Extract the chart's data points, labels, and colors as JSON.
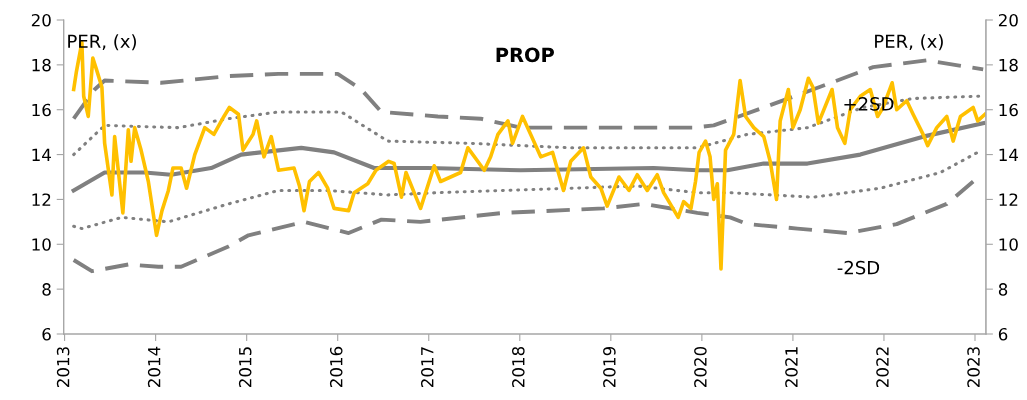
{
  "chart_data": {
    "type": "line",
    "title": "PROP",
    "ylabel": "PER, (x)",
    "y2label": "PER, (x)",
    "xlim": [
      2012.99,
      2023.12
    ],
    "xticks": [
      2013,
      2014,
      2015,
      2016,
      2017,
      2018,
      2019,
      2020,
      2021,
      2022,
      2023
    ],
    "ylim": [
      6,
      20
    ],
    "yticks": [
      6,
      8,
      10,
      12,
      14,
      16,
      18,
      20
    ],
    "y2lim": [
      6,
      20
    ],
    "y2ticks": [
      6,
      8,
      10,
      12,
      14,
      16,
      18,
      20
    ],
    "grid": false,
    "annotations": [
      {
        "text": "+2SD",
        "x": 2021.83,
        "y": 17.8
      },
      {
        "text": "-2SD",
        "x": 2021.72,
        "y": 10.5
      }
    ],
    "series": [
      {
        "color": "#808080",
        "line_style": "dashed",
        "x": [
          2013.1,
          2013.3,
          2013.7,
          2014.03,
          2014.28,
          2014.8,
          2015.02,
          2015.63,
          2016.12,
          2016.48,
          2016.91,
          2017.82,
          2018.92,
          2019.36,
          2019.95,
          2020.31,
          2020.5,
          2021.05,
          2021.6,
          2022.14,
          2022.69,
          2022.98
        ],
        "values": [
          9.3,
          8.8,
          9.1,
          9.0,
          9.0,
          9.9,
          10.4,
          11.0,
          10.5,
          11.1,
          11.0,
          11.4,
          11.6,
          11.8,
          11.4,
          11.2,
          10.9,
          10.7,
          10.5,
          10.9,
          11.8,
          12.8
        ]
      },
      {
        "color": "#808080",
        "line_style": "dashed",
        "x": [
          2013.1,
          2013.33,
          2013.44,
          2014.06,
          2014.8,
          2015.35,
          2016.0,
          2016.26,
          2016.48,
          2017.1,
          2017.57,
          2018.01,
          2018.92,
          2019.91,
          2020.13,
          2020.68,
          2021.22,
          2021.88,
          2022.47,
          2023.09
        ],
        "values": [
          15.6,
          16.9,
          17.3,
          17.2,
          17.5,
          17.6,
          17.6,
          16.9,
          15.9,
          15.7,
          15.6,
          15.2,
          15.2,
          15.2,
          15.3,
          16.1,
          16.9,
          17.9,
          18.2,
          17.8
        ]
      },
      {
        "color": "#808080",
        "line_style": "dotted",
        "x": [
          2013.1,
          2013.19,
          2013.63,
          2014.14,
          2014.8,
          2015.35,
          2015.89,
          2016.55,
          2017.1,
          2018.56,
          2019.29,
          2019.95,
          2020.31,
          2021.22,
          2021.96,
          2022.62,
          2023.03
        ],
        "values": [
          10.8,
          10.7,
          11.2,
          11.0,
          11.8,
          12.4,
          12.4,
          12.2,
          12.3,
          12.5,
          12.6,
          12.3,
          12.3,
          12.1,
          12.5,
          13.2,
          14.1
        ]
      },
      {
        "color": "#808080",
        "line_style": "dotted",
        "x": [
          2013.1,
          2013.44,
          2014.25,
          2014.8,
          2015.35,
          2016.04,
          2016.55,
          2017.46,
          2018.56,
          2019.95,
          2020.5,
          2021.16,
          2021.77,
          2022.32,
          2023.05
        ],
        "values": [
          14.0,
          15.3,
          15.2,
          15.6,
          15.9,
          15.9,
          14.6,
          14.5,
          14.3,
          14.3,
          14.9,
          15.2,
          16.1,
          16.5,
          16.6
        ]
      },
      {
        "color": "#808080",
        "line_style": "solid",
        "x": [
          2013.1,
          2013.44,
          2013.88,
          2014.17,
          2014.61,
          2014.94,
          2015.6,
          2015.96,
          2016.4,
          2016.99,
          2018.01,
          2019.47,
          2019.95,
          2020.28,
          2020.68,
          2021.16,
          2021.74,
          2022.43,
          2023.09
        ],
        "values": [
          12.4,
          13.2,
          13.2,
          13.1,
          13.4,
          14.0,
          14.3,
          14.1,
          13.4,
          13.4,
          13.3,
          13.4,
          13.3,
          13.3,
          13.6,
          13.6,
          14.0,
          14.8,
          15.4
        ]
      },
      {
        "color": "#ffc000",
        "line_style": "solid",
        "x": [
          2013.1,
          2013.13,
          2013.19,
          2013.21,
          2013.26,
          2013.31,
          2013.35,
          2013.41,
          2013.44,
          2013.52,
          2013.55,
          2013.64,
          2013.7,
          2013.73,
          2013.77,
          2013.84,
          2013.92,
          2014.01,
          2014.07,
          2014.14,
          2014.19,
          2014.28,
          2014.34,
          2014.43,
          2014.54,
          2014.64,
          2014.75,
          2014.81,
          2014.91,
          2014.96,
          2015.07,
          2015.11,
          2015.19,
          2015.27,
          2015.35,
          2015.52,
          2015.58,
          2015.63,
          2015.69,
          2015.79,
          2015.89,
          2015.96,
          2016.12,
          2016.18,
          2016.33,
          2016.42,
          2016.56,
          2016.62,
          2016.7,
          2016.75,
          2016.91,
          2017.06,
          2017.13,
          2017.35,
          2017.43,
          2017.61,
          2017.68,
          2017.76,
          2017.87,
          2017.92,
          2018.03,
          2018.12,
          2018.23,
          2018.36,
          2018.48,
          2018.56,
          2018.7,
          2018.78,
          2018.89,
          2018.96,
          2019.09,
          2019.2,
          2019.29,
          2019.4,
          2019.51,
          2019.58,
          2019.74,
          2019.8,
          2019.88,
          2019.93,
          2019.97,
          2020.04,
          2020.09,
          2020.13,
          2020.17,
          2020.21,
          2020.26,
          2020.35,
          2020.42,
          2020.48,
          2020.57,
          2020.68,
          2020.75,
          2020.82,
          2020.86,
          2020.95,
          2021.0,
          2021.08,
          2021.17,
          2021.22,
          2021.28,
          2021.43,
          2021.49,
          2021.57,
          2021.63,
          2021.74,
          2021.85,
          2021.93,
          2021.99,
          2022.09,
          2022.14,
          2022.25,
          2022.32,
          2022.43,
          2022.48,
          2022.58,
          2022.69,
          2022.76,
          2022.84,
          2022.98,
          2023.03,
          2023.11
        ],
        "values": [
          16.9,
          17.7,
          19.0,
          16.6,
          15.7,
          18.3,
          17.8,
          17.0,
          14.5,
          12.2,
          14.8,
          11.4,
          15.1,
          13.7,
          15.2,
          14.2,
          12.8,
          10.4,
          11.5,
          12.4,
          13.4,
          13.4,
          12.5,
          14.0,
          15.2,
          14.9,
          15.7,
          16.1,
          15.8,
          14.2,
          14.9,
          15.5,
          13.9,
          14.8,
          13.3,
          13.4,
          12.6,
          11.5,
          12.8,
          13.2,
          12.5,
          11.6,
          11.5,
          12.3,
          12.7,
          13.3,
          13.7,
          13.6,
          12.1,
          13.2,
          11.6,
          13.5,
          12.8,
          13.2,
          14.3,
          13.3,
          13.9,
          14.9,
          15.5,
          14.5,
          15.7,
          14.9,
          13.9,
          14.1,
          12.4,
          13.7,
          14.3,
          13.0,
          12.5,
          11.7,
          13.0,
          12.4,
          13.1,
          12.4,
          13.1,
          12.3,
          11.2,
          11.9,
          11.6,
          12.8,
          14.1,
          14.6,
          13.9,
          12.0,
          12.7,
          8.9,
          14.2,
          14.9,
          17.3,
          15.7,
          15.2,
          14.8,
          13.7,
          12.0,
          15.5,
          16.9,
          15.2,
          16.0,
          17.4,
          17.0,
          15.4,
          16.9,
          15.2,
          14.5,
          16.0,
          16.6,
          16.9,
          15.7,
          16.1,
          17.2,
          16.0,
          16.4,
          15.8,
          14.9,
          14.4,
          15.2,
          15.7,
          14.6,
          15.7,
          16.1,
          15.5,
          15.8
        ]
      }
    ]
  }
}
